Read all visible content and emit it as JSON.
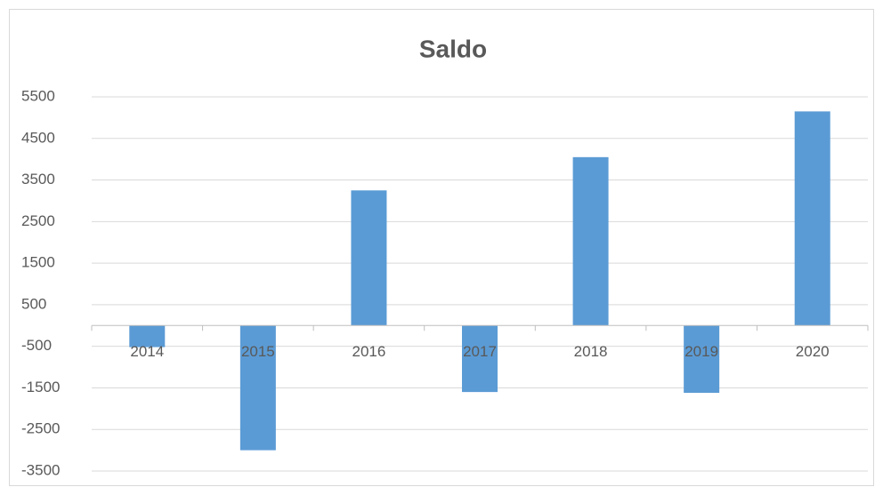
{
  "chart_data": {
    "type": "bar",
    "title": "Saldo",
    "categories": [
      "2014",
      "2015",
      "2016",
      "2017",
      "2018",
      "2019",
      "2020"
    ],
    "values": [
      -520,
      -3000,
      3250,
      -1600,
      4050,
      -1620,
      5150
    ],
    "color": "#5b9bd5",
    "ylim": [
      -3500,
      5500
    ],
    "yticks": [
      -3500,
      -2500,
      -1500,
      -500,
      500,
      1500,
      2500,
      3500,
      4500,
      5500
    ],
    "grid": true
  }
}
